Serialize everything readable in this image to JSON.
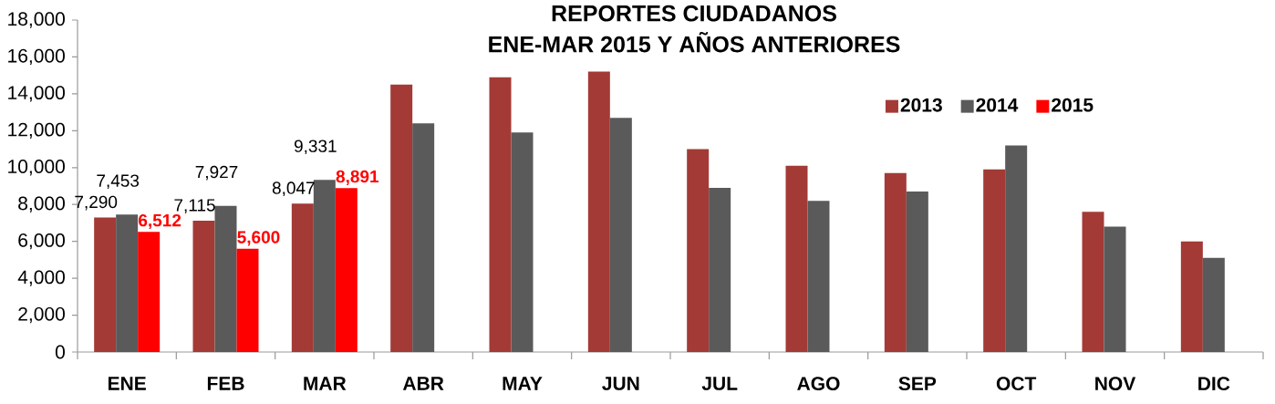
{
  "chart_data": {
    "type": "bar",
    "title": "REPORTES CIUDADANOS",
    "subtitle": "ENE-MAR 2015 Y AÑOS ANTERIORES",
    "categories": [
      "ENE",
      "FEB",
      "MAR",
      "ABR",
      "MAY",
      "JUN",
      "JUL",
      "AGO",
      "SEP",
      "OCT",
      "NOV",
      "DIC"
    ],
    "series": [
      {
        "name": "2013",
        "color": "#a33a36",
        "values": [
          7290,
          7115,
          8047,
          14500,
          14900,
          15200,
          11000,
          10100,
          9700,
          9900,
          7600,
          6000
        ],
        "value_labels": [
          "7,290",
          "7,115",
          "8,047",
          null,
          null,
          null,
          null,
          null,
          null,
          null,
          null,
          null
        ]
      },
      {
        "name": "2014",
        "color": "#5a5a5a",
        "values": [
          7453,
          7927,
          9331,
          12400,
          11900,
          12700,
          8900,
          8200,
          8700,
          11200,
          6800,
          5100
        ],
        "value_labels": [
          "7,453",
          "7,927",
          "9,331",
          null,
          null,
          null,
          null,
          null,
          null,
          null,
          null,
          null
        ]
      },
      {
        "name": "2015",
        "color": "#ff0000",
        "values": [
          6512,
          5600,
          8891,
          null,
          null,
          null,
          null,
          null,
          null,
          null,
          null,
          null
        ],
        "value_labels": [
          "6,512",
          "5,600",
          "8,891",
          null,
          null,
          null,
          null,
          null,
          null,
          null,
          null,
          null
        ]
      }
    ],
    "ylim": [
      0,
      18000
    ],
    "yticks": [
      {
        "value": 0,
        "label": "0"
      },
      {
        "value": 2000,
        "label": "2,000"
      },
      {
        "value": 4000,
        "label": "4,000"
      },
      {
        "value": 6000,
        "label": "6,000"
      },
      {
        "value": 8000,
        "label": "8,000"
      },
      {
        "value": 10000,
        "label": "10,000"
      },
      {
        "value": 12000,
        "label": "12,000"
      },
      {
        "value": 14000,
        "label": "14,000"
      },
      {
        "value": 16000,
        "label": "16,000"
      },
      {
        "value": 18000,
        "label": "18,000"
      }
    ],
    "legend": "top right",
    "grid": false
  }
}
